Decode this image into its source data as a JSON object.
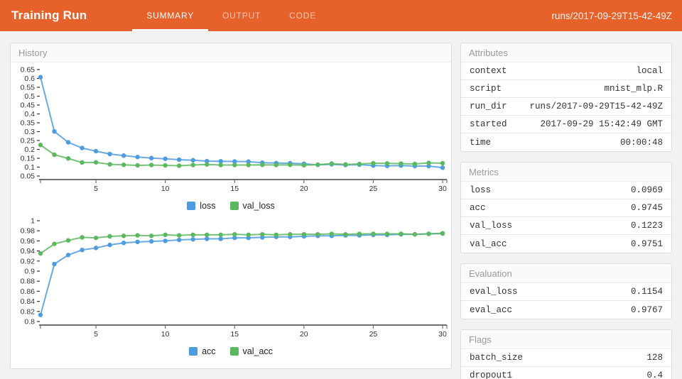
{
  "header": {
    "title": "Training Run",
    "tabs": [
      {
        "label": "SUMMARY",
        "active": true
      },
      {
        "label": "OUTPUT",
        "active": false
      },
      {
        "label": "CODE",
        "active": false
      }
    ],
    "run_label": "runs/2017-09-29T15-42-49Z",
    "accent_color": "#e7622b"
  },
  "history_panel": {
    "title": "History"
  },
  "chart_data": [
    {
      "type": "line",
      "name": "loss-history",
      "x": [
        1,
        2,
        3,
        4,
        5,
        6,
        7,
        8,
        9,
        10,
        11,
        12,
        13,
        14,
        15,
        16,
        17,
        18,
        19,
        20,
        21,
        22,
        23,
        24,
        25,
        26,
        27,
        28,
        29,
        30
      ],
      "series": [
        {
          "name": "loss",
          "color": "#4d9be0",
          "values": [
            0.607,
            0.301,
            0.24,
            0.208,
            0.19,
            0.174,
            0.165,
            0.157,
            0.151,
            0.147,
            0.142,
            0.139,
            0.134,
            0.133,
            0.132,
            0.131,
            0.125,
            0.123,
            0.122,
            0.119,
            0.113,
            0.116,
            0.112,
            0.114,
            0.109,
            0.107,
            0.109,
            0.106,
            0.106,
            0.097
          ]
        },
        {
          "name": "val_loss",
          "color": "#5cb85f",
          "values": [
            0.225,
            0.17,
            0.149,
            0.126,
            0.127,
            0.116,
            0.113,
            0.11,
            0.112,
            0.11,
            0.108,
            0.112,
            0.115,
            0.112,
            0.112,
            0.112,
            0.113,
            0.112,
            0.113,
            0.111,
            0.114,
            0.12,
            0.115,
            0.118,
            0.122,
            0.121,
            0.12,
            0.118,
            0.124,
            0.122
          ]
        }
      ],
      "ylim": [
        0.05,
        0.65
      ],
      "ytick_labels": [
        "0.65",
        "0.6",
        "0.55",
        "0.5",
        "0.45",
        "0.4",
        "0.35",
        "0.3",
        "0.25",
        "0.2",
        "0.15",
        "0.1",
        "0.05"
      ],
      "xticks": [
        5,
        10,
        15,
        20,
        25,
        30
      ],
      "xlabel": "",
      "ylabel": "",
      "grid": false,
      "legend_position": "bottom"
    },
    {
      "type": "line",
      "name": "accuracy-history",
      "x": [
        1,
        2,
        3,
        4,
        5,
        6,
        7,
        8,
        9,
        10,
        11,
        12,
        13,
        14,
        15,
        16,
        17,
        18,
        19,
        20,
        21,
        22,
        23,
        24,
        25,
        26,
        27,
        28,
        29,
        30
      ],
      "series": [
        {
          "name": "acc",
          "color": "#4d9be0",
          "values": [
            0.813,
            0.914,
            0.932,
            0.942,
            0.946,
            0.952,
            0.956,
            0.958,
            0.959,
            0.96,
            0.962,
            0.963,
            0.964,
            0.964,
            0.966,
            0.966,
            0.967,
            0.968,
            0.968,
            0.969,
            0.97,
            0.97,
            0.971,
            0.971,
            0.972,
            0.972,
            0.973,
            0.973,
            0.974,
            0.9745
          ]
        },
        {
          "name": "val_acc",
          "color": "#5cb85f",
          "values": [
            0.935,
            0.954,
            0.961,
            0.967,
            0.966,
            0.969,
            0.97,
            0.971,
            0.97,
            0.972,
            0.971,
            0.972,
            0.972,
            0.972,
            0.973,
            0.972,
            0.973,
            0.972,
            0.973,
            0.973,
            0.973,
            0.974,
            0.973,
            0.974,
            0.974,
            0.974,
            0.974,
            0.973,
            0.974,
            0.9751
          ]
        }
      ],
      "ylim": [
        0.8,
        1.0
      ],
      "ytick_labels": [
        "1",
        "0.98",
        "0.96",
        "0.94",
        "0.92",
        "0.9",
        "0.88",
        "0.86",
        "0.84",
        "0.82",
        "0.8"
      ],
      "xticks": [
        5,
        10,
        15,
        20,
        25,
        30
      ],
      "xlabel": "",
      "ylabel": "",
      "grid": false,
      "legend_position": "bottom"
    }
  ],
  "cards": [
    {
      "title": "Attributes",
      "rows": [
        {
          "key": "context",
          "value": "local"
        },
        {
          "key": "script",
          "value": "mnist_mlp.R"
        },
        {
          "key": "run_dir",
          "value": "runs/2017-09-29T15-42-49Z"
        },
        {
          "key": "started",
          "value": "2017-09-29 15:42:49 GMT"
        },
        {
          "key": "time",
          "value": "00:00:48"
        }
      ]
    },
    {
      "title": "Metrics",
      "rows": [
        {
          "key": "loss",
          "value": "0.0969"
        },
        {
          "key": "acc",
          "value": "0.9745"
        },
        {
          "key": "val_loss",
          "value": "0.1223"
        },
        {
          "key": "val_acc",
          "value": "0.9751"
        }
      ]
    },
    {
      "title": "Evaluation",
      "rows": [
        {
          "key": "eval_loss",
          "value": "0.1154"
        },
        {
          "key": "eval_acc",
          "value": "0.9767"
        }
      ]
    },
    {
      "title": "Flags",
      "rows": [
        {
          "key": "batch_size",
          "value": "128"
        },
        {
          "key": "dropout1",
          "value": "0.4"
        }
      ]
    }
  ],
  "chart_style": {
    "axis_color": "#707070",
    "tick_text_color": "#333333"
  }
}
